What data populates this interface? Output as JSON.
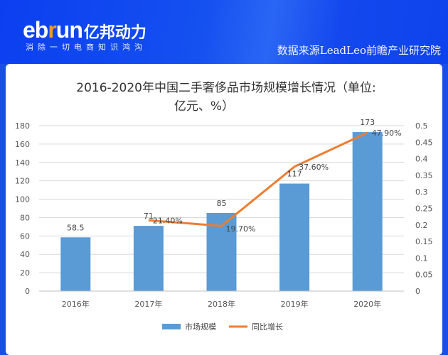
{
  "header": {
    "logo_latin": "ebrun",
    "logo_cn": "亿邦动力",
    "slogan": "消除一切电商知识鸿沟",
    "source": "数据来源LeadLeo前瞻产业研究院"
  },
  "chart_data": {
    "type": "bar+line",
    "title_line1": "2016-2020年中国二手奢侈品市场规模增长情况（单位:",
    "title_line2": "亿元、%）",
    "categories": [
      "2016年",
      "2017年",
      "2018年",
      "2019年",
      "2020年"
    ],
    "series": [
      {
        "name": "市场规模",
        "type": "bar",
        "axis": "left",
        "color": "#5b9bd5",
        "values": [
          58.5,
          71,
          85,
          117,
          173
        ],
        "labels": [
          "58.5",
          "71",
          "85",
          "117",
          "173"
        ]
      },
      {
        "name": "同比增长",
        "type": "line",
        "axis": "right",
        "color": "#ed7d31",
        "values": [
          null,
          0.214,
          0.197,
          0.376,
          0.479
        ],
        "labels": [
          "",
          "21.40%",
          "19.70%",
          "37.60%",
          "47.90%"
        ]
      }
    ],
    "left_axis": {
      "range": [
        0,
        180
      ],
      "ticks": [
        "0",
        "20",
        "40",
        "60",
        "80",
        "100",
        "120",
        "140",
        "160",
        "180"
      ]
    },
    "right_axis": {
      "range": [
        0,
        0.5
      ],
      "ticks": [
        "0",
        "0.05",
        "0.1",
        "0.15",
        "0.2",
        "0.25",
        "0.3",
        "0.35",
        "0.4",
        "0.45",
        "0.5"
      ]
    },
    "grid": true,
    "legend": "bottom"
  }
}
